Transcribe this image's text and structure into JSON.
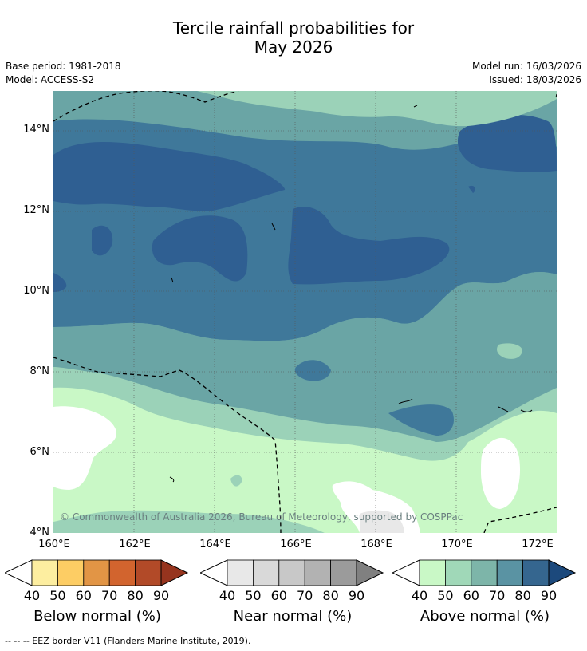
{
  "title_line1": "Tercile rainfall probabilities for",
  "title_line2": "May 2026",
  "meta": {
    "base_period": "Base period: 1981-2018",
    "model": "Model: ACCESS-S2",
    "model_run": "Model run: 16/03/2026",
    "issued": "Issued: 18/03/2026"
  },
  "map": {
    "y_ticks": [
      "14°N",
      "12°N",
      "10°N",
      "8°N",
      "6°N",
      "4°N"
    ],
    "x_ticks": [
      "160°E",
      "162°E",
      "164°E",
      "166°E",
      "168°E",
      "170°E",
      "172°E"
    ],
    "copyright": "© Commonwealth of Australia 2026, Bureau of Meteorology, supported by COSPPac"
  },
  "legends": [
    {
      "title": "Below normal (%)",
      "ticks": [
        "40",
        "50",
        "60",
        "70",
        "80",
        "90"
      ],
      "colors": [
        "#fdeea0",
        "#fdcd64",
        "#e29545",
        "#d2642e",
        "#b24a28",
        "#96341e"
      ]
    },
    {
      "title": "Near normal (%)",
      "ticks": [
        "40",
        "50",
        "60",
        "70",
        "80",
        "90"
      ],
      "colors": [
        "#e8e8e8",
        "#d9d9d9",
        "#c8c8c8",
        "#b2b2b2",
        "#9b9b9b",
        "#808080"
      ]
    },
    {
      "title": "Above normal (%)",
      "ticks": [
        "40",
        "50",
        "60",
        "70",
        "80",
        "90"
      ],
      "colors": [
        "#c9f8c6",
        "#a0d8b8",
        "#7db5a9",
        "#5a93a3",
        "#35668f",
        "#1c497c"
      ]
    }
  ],
  "footer": "-- -- -- EEZ border V11 (Flanders Marine Institute, 2019).",
  "colors": {
    "c50": "#9bd2b8",
    "c60": "#6aa5a5",
    "c70": "#3f789a",
    "c80": "#2f5f92",
    "c40": "#c9f8c6",
    "nn40": "#e8e8e8"
  }
}
